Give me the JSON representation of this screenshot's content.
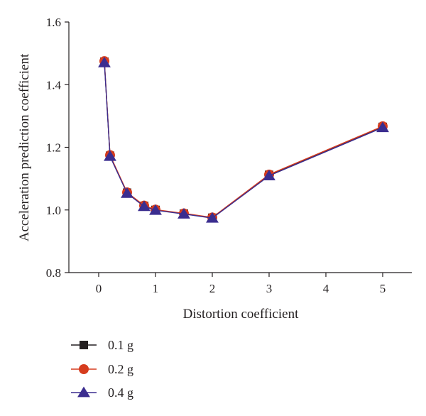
{
  "chart_data": {
    "type": "line",
    "title": "",
    "xlabel": "Distortion coefficient",
    "ylabel": "Acceleration prediction coefficient",
    "x_tick_labels": [
      "0",
      "1",
      "2",
      "3",
      "4",
      "5"
    ],
    "y_tick_labels": [
      "0.8",
      "1.0",
      "1.2",
      "1.4",
      "1.6"
    ],
    "y_ticks": [
      0.8,
      1.0,
      1.2,
      1.4,
      1.6
    ],
    "ylim": [
      0.8,
      1.6
    ],
    "x_axis_note": "categorical-style positions: 0,1,2,3,4,5 evenly spaced; data at 0.1,0.2,0.5,0.8,1,1.5,2,3,5",
    "x": [
      0.1,
      0.2,
      0.5,
      0.8,
      1.0,
      1.5,
      2.0,
      3.0,
      5.0
    ],
    "grid": false,
    "legend_position": "bottom-left",
    "series": [
      {
        "name": "0.1 g",
        "marker": "square",
        "color": "#231f20",
        "values": [
          1.473,
          1.173,
          1.055,
          1.013,
          1.0,
          0.988,
          0.975,
          1.112,
          1.265
        ]
      },
      {
        "name": "0.2 g",
        "marker": "circle",
        "color": "#d63c1e",
        "values": [
          1.475,
          1.175,
          1.056,
          1.014,
          1.001,
          0.989,
          0.976,
          1.113,
          1.267
        ]
      },
      {
        "name": "0.4 g",
        "marker": "triangle",
        "color": "#3b2d8f",
        "values": [
          1.47,
          1.171,
          1.053,
          1.011,
          0.999,
          0.987,
          0.974,
          1.109,
          1.263
        ]
      }
    ]
  },
  "colors": {
    "axis": "#231f20"
  }
}
